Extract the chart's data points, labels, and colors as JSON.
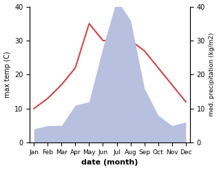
{
  "months": [
    "Jan",
    "Feb",
    "Mar",
    "Apr",
    "May",
    "Jun",
    "Jul",
    "Aug",
    "Sep",
    "Oct",
    "Nov",
    "Dec"
  ],
  "temperature": [
    10,
    13,
    17,
    22,
    35,
    30,
    30,
    30,
    27,
    22,
    17,
    12
  ],
  "precipitation": [
    4,
    5,
    5,
    11,
    12,
    28,
    42,
    36,
    16,
    8,
    5,
    6
  ],
  "temp_color": "#cc4444",
  "precip_fill_color": "#b8c0e0",
  "temp_ylim": [
    0,
    40
  ],
  "precip_ylim": [
    0,
    40
  ],
  "xlabel": "date (month)",
  "ylabel_left": "max temp (C)",
  "ylabel_right": "med. precipitation (kg/m2)",
  "background_color": "#ffffff",
  "temp_yticks": [
    0,
    10,
    20,
    30,
    40
  ],
  "precip_yticks": [
    0,
    10,
    20,
    30,
    40
  ]
}
